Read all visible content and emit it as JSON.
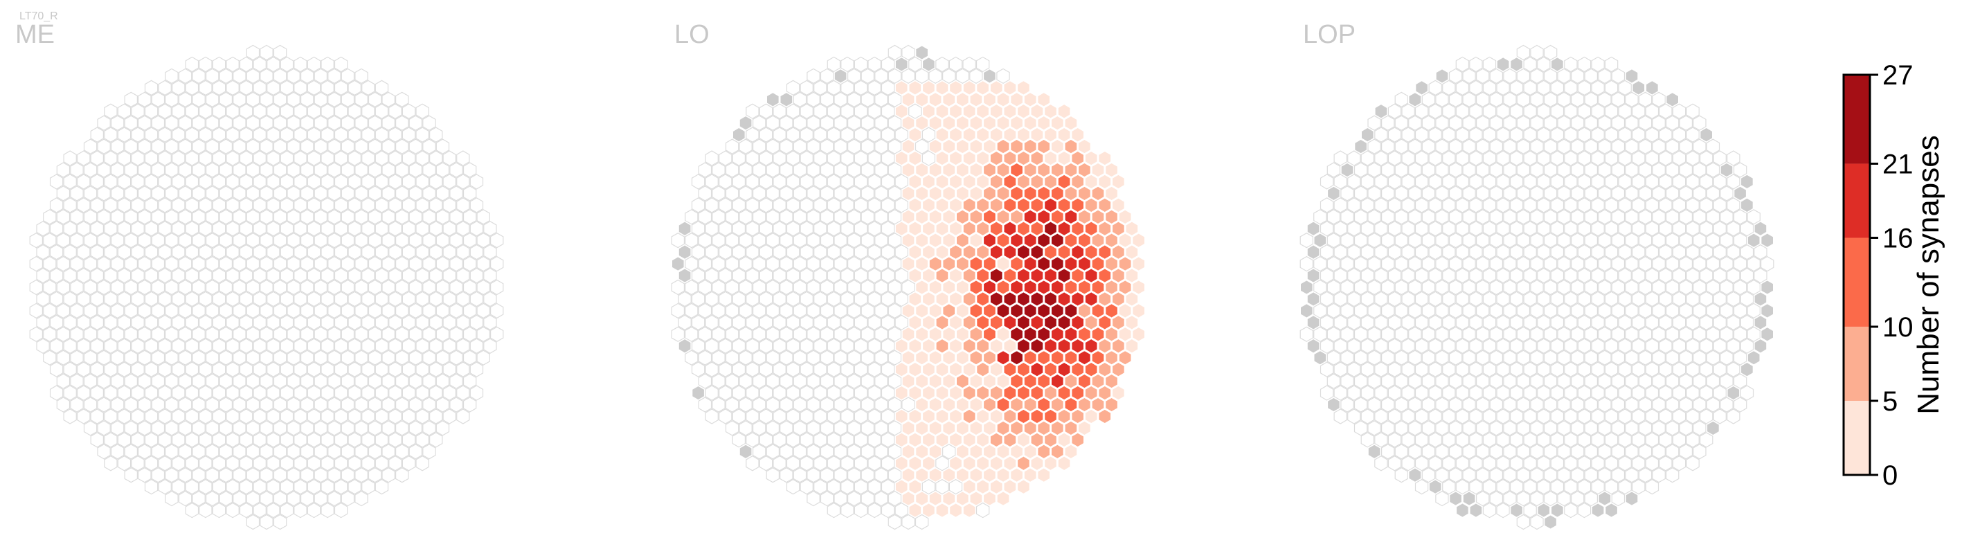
{
  "figure": {
    "cell_type_label": "LT70_R",
    "colorbar_label": "Number of synapses"
  },
  "colors": {
    "empty_hex_stroke": "#dcdcdc",
    "empty_hex_fill": "#ffffff",
    "region_label": "#c8c8c8",
    "no_data_fill": "#cccccc",
    "bins": [
      "#fee5d9",
      "#fcae91",
      "#fb6a4a",
      "#de2d26",
      "#a50f15"
    ]
  },
  "chart_data": [
    {
      "type": "heatmap",
      "name": "ME",
      "title": "ME",
      "description_of_values": "all hexagonal columns empty (no synapses)",
      "columns_with_synapses": 0,
      "max_value": 0
    },
    {
      "type": "heatmap",
      "name": "LO",
      "title": "LO",
      "columns_with_synapses_approx": 210,
      "max_value": 27,
      "peak_region": "right-center of the eye map",
      "value_bins": [
        {
          "range": [
            0,
            5
          ],
          "color": "#fee5d9"
        },
        {
          "range": [
            5,
            10
          ],
          "color": "#fcae91"
        },
        {
          "range": [
            10,
            16
          ],
          "color": "#fb6a4a"
        },
        {
          "range": [
            16,
            21
          ],
          "color": "#de2d26"
        },
        {
          "range": [
            21,
            27
          ],
          "color": "#a50f15"
        }
      ]
    },
    {
      "type": "heatmap",
      "name": "LOP",
      "title": "LOP",
      "columns_with_synapses": 0,
      "max_value": 0,
      "note": "grey marked columns along the border only"
    }
  ],
  "colorbar": {
    "label": "Number of synapses",
    "ticks": [
      0,
      5,
      10,
      16,
      21,
      27
    ],
    "tick_labels": [
      "0",
      "5",
      "10",
      "16",
      "21",
      "27"
    ],
    "range": [
      0,
      27
    ]
  }
}
